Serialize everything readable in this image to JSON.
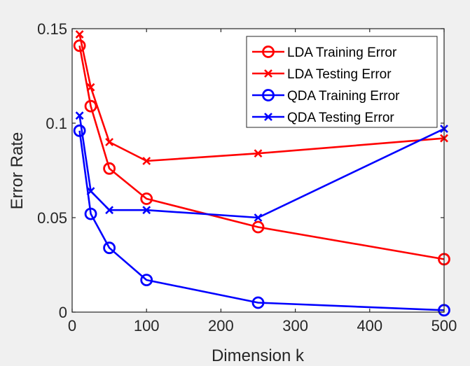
{
  "chart_data": {
    "type": "line",
    "xlabel": "Dimension k",
    "ylabel": "Error Rate",
    "xlim": [
      0,
      500
    ],
    "ylim": [
      0,
      0.15
    ],
    "xticks": [
      0,
      100,
      200,
      300,
      400,
      500
    ],
    "xtick_labels": [
      "0",
      "100",
      "200",
      "300",
      "400",
      "500"
    ],
    "yticks": [
      0,
      0.05,
      0.1,
      0.15
    ],
    "ytick_labels": [
      "0",
      "0.05",
      "0.1",
      "0.15"
    ],
    "grid": false,
    "legend_position": "top-right",
    "x": [
      10,
      25,
      50,
      100,
      250,
      500
    ],
    "series": [
      {
        "name": "LDA Training Error",
        "color": "#ff0000",
        "marker": "circle",
        "values": [
          0.141,
          0.109,
          0.076,
          0.06,
          0.045,
          0.028
        ]
      },
      {
        "name": "LDA Testing Error",
        "color": "#ff0000",
        "marker": "x",
        "values": [
          0.147,
          0.119,
          0.09,
          0.08,
          0.084,
          0.092
        ]
      },
      {
        "name": "QDA Training Error",
        "color": "#0000ff",
        "marker": "circle",
        "values": [
          0.096,
          0.052,
          0.034,
          0.017,
          0.005,
          0.001
        ]
      },
      {
        "name": "QDA Testing Error",
        "color": "#0000ff",
        "marker": "x",
        "values": [
          0.104,
          0.064,
          0.054,
          0.054,
          0.05,
          0.097
        ]
      }
    ]
  }
}
